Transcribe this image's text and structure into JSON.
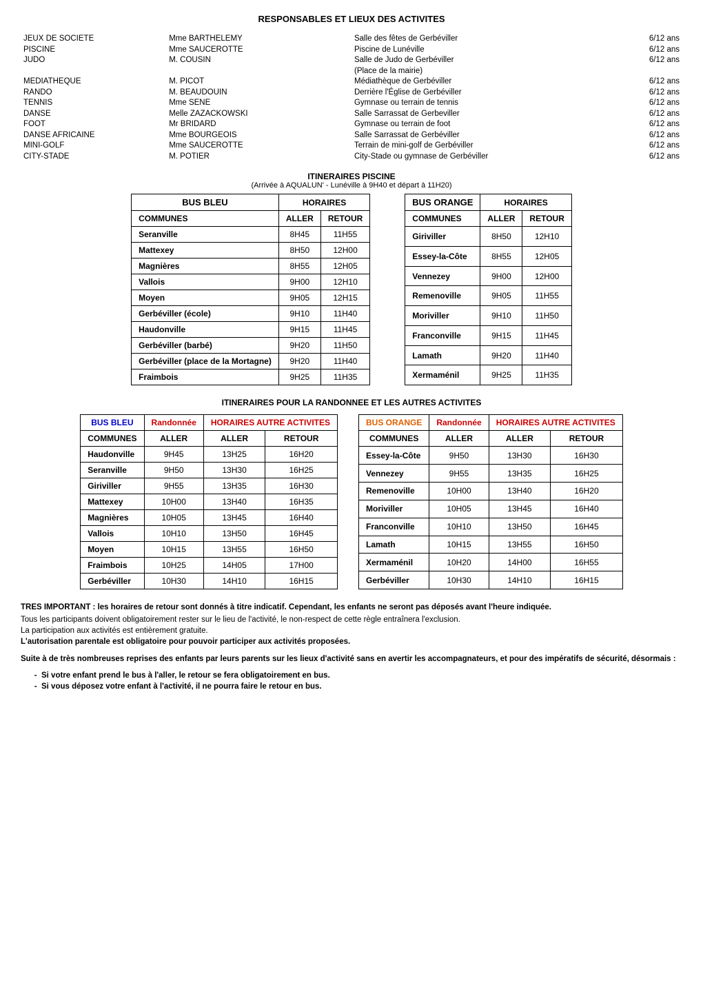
{
  "title": "RESPONSABLES ET LIEUX DES ACTIVITES",
  "responsables": {
    "group1": [
      {
        "act": "JEUX DE SOCIETE",
        "name": "Mme BARTHELEMY",
        "loc": "Salle des fêtes de Gerbéviller",
        "age": "6/12 ans"
      },
      {
        "act": "PISCINE",
        "name": "Mme SAUCEROTTE",
        "loc": "Piscine de Lunéville",
        "age": "6/12 ans"
      },
      {
        "act": "JUDO",
        "name": "M. COUSIN",
        "loc": "Salle de Judo de Gerbéviller",
        "age": "6/12 ans"
      },
      {
        "act": "",
        "name": "",
        "loc": "   (Place de la mairie)",
        "age": ""
      }
    ],
    "group2": [
      {
        "act": "MEDIATHEQUE",
        "name": "M. PICOT",
        "loc": "Médiathèque de Gerbéviller",
        "age": "6/12 ans"
      },
      {
        "act": "RANDO",
        "name": "M. BEAUDOUIN",
        "loc": "Derrière l'Église de Gerbéviller",
        "age": "6/12 ans"
      },
      {
        "act": "TENNIS",
        "name": "Mme SENE",
        "loc": "Gymnase ou terrain de tennis",
        "age": "6/12 ans"
      },
      {
        "act": "DANSE",
        "name": "Melle ZAZACKOWSKI",
        "loc": "Salle Sarrassat de Gerbeviller",
        "age": "6/12 ans"
      },
      {
        "act": "FOOT",
        "name": "Mr BRIDARD",
        "loc": "Gymnase ou terrain de foot",
        "age": "6/12 ans"
      },
      {
        "act": "DANSE AFRICAINE",
        "name": "Mme BOURGEOIS",
        "loc": "Salle Sarrassat de Gerbéviller",
        "age": "6/12 ans"
      },
      {
        "act": "MINI-GOLF",
        "name": "Mme SAUCEROTTE",
        "loc": "Terrain de mini-golf de Gerbéviller",
        "age": "6/12 ans"
      },
      {
        "act": "CITY-STADE",
        "name": "M. POTIER",
        "loc": "City-Stade ou gymnase de Gerbéviller",
        "age": "6/12 ans"
      }
    ]
  },
  "piscine": {
    "title": "ITINERAIRES PISCINE",
    "sub": "(Arrivée à AQUALUN' - Lunéville à 9H40 et départ à 11H20)",
    "left": {
      "bus": "BUS BLEU",
      "hor": "HORAIRES",
      "com": "COMMUNES",
      "aller": "ALLER",
      "retour": "RETOUR",
      "rows": [
        {
          "c": "Seranville",
          "a": "8H45",
          "r": "11H55"
        },
        {
          "c": "Mattexey",
          "a": "8H50",
          "r": "12H00"
        },
        {
          "c": "Magnières",
          "a": "8H55",
          "r": "12H05"
        },
        {
          "c": "Vallois",
          "a": "9H00",
          "r": "12H10"
        },
        {
          "c": "Moyen",
          "a": "9H05",
          "r": "12H15"
        },
        {
          "c": "Gerbéviller (école)",
          "a": "9H10",
          "r": "11H40"
        },
        {
          "c": "Haudonville",
          "a": "9H15",
          "r": "11H45"
        },
        {
          "c": "Gerbéviller (barbé)",
          "a": "9H20",
          "r": "11H50"
        },
        {
          "c": "Gerbéviller (place de la Mortagne)",
          "a": "9H20",
          "r": "11H40"
        },
        {
          "c": "Fraimbois",
          "a": "9H25",
          "r": "11H35"
        }
      ]
    },
    "right": {
      "bus": "BUS ORANGE",
      "hor": "HORAIRES",
      "com": "COMMUNES",
      "aller": "ALLER",
      "retour": "RETOUR",
      "rows": [
        {
          "c": "Giriviller",
          "a": "8H50",
          "r": "12H10"
        },
        {
          "c": "Essey-la-Côte",
          "a": "8H55",
          "r": "12H05"
        },
        {
          "c": "Vennezey",
          "a": "9H00",
          "r": "12H00"
        },
        {
          "c": "Remenoville",
          "a": "9H05",
          "r": "11H55"
        },
        {
          "c": "Moriviller",
          "a": "9H10",
          "r": "11H50"
        },
        {
          "c": "Franconville",
          "a": "9H15",
          "r": "11H45"
        },
        {
          "c": "Lamath",
          "a": "9H20",
          "r": "11H40"
        },
        {
          "c": "Xermaménil",
          "a": "9H25",
          "r": "11H35"
        }
      ]
    }
  },
  "rando": {
    "title": "ITINERAIRES POUR LA RANDONNEE ET LES AUTRES ACTIVITES",
    "left": {
      "bus": "BUS BLEU",
      "rand": "Randonnée",
      "hor": "HORAIRES AUTRE ACTIVITES",
      "com": "COMMUNES",
      "aller": "ALLER",
      "aller2": "ALLER",
      "retour": "RETOUR",
      "rows": [
        {
          "c": "Haudonville",
          "a1": "9H45",
          "a2": "13H25",
          "r": "16H20"
        },
        {
          "c": "Seranville",
          "a1": "9H50",
          "a2": "13H30",
          "r": "16H25"
        },
        {
          "c": "Giriviller",
          "a1": "9H55",
          "a2": "13H35",
          "r": "16H30"
        },
        {
          "c": "Mattexey",
          "a1": "10H00",
          "a2": "13H40",
          "r": "16H35"
        },
        {
          "c": "Magnières",
          "a1": "10H05",
          "a2": "13H45",
          "r": "16H40"
        },
        {
          "c": "Vallois",
          "a1": "10H10",
          "a2": "13H50",
          "r": "16H45"
        },
        {
          "c": "Moyen",
          "a1": "10H15",
          "a2": "13H55",
          "r": "16H50"
        },
        {
          "c": "Fraimbois",
          "a1": "10H25",
          "a2": "14H05",
          "r": "17H00"
        },
        {
          "c": "Gerbéviller",
          "a1": "10H30",
          "a2": "14H10",
          "r": "16H15"
        }
      ]
    },
    "right": {
      "bus": "BUS ORANGE",
      "rand": "Randonnée",
      "hor": "HORAIRES AUTRE ACTIVITES",
      "com": "COMMUNES",
      "aller": "ALLER",
      "aller2": "ALLER",
      "retour": "RETOUR",
      "rows": [
        {
          "c": "Essey-la-Côte",
          "a1": "9H50",
          "a2": "13H30",
          "r": "16H30"
        },
        {
          "c": "Vennezey",
          "a1": "9H55",
          "a2": "13H35",
          "r": "16H25"
        },
        {
          "c": "Remenoville",
          "a1": "10H00",
          "a2": "13H40",
          "r": "16H20"
        },
        {
          "c": "Moriviller",
          "a1": "10H05",
          "a2": "13H45",
          "r": "16H40"
        },
        {
          "c": "Franconville",
          "a1": "10H10",
          "a2": "13H50",
          "r": "16H45"
        },
        {
          "c": "Lamath",
          "a1": "10H15",
          "a2": "13H55",
          "r": "16H50"
        },
        {
          "c": "Xermaménil",
          "a1": "10H20",
          "a2": "14H00",
          "r": "16H55"
        },
        {
          "c": "Gerbéviller",
          "a1": "10H30",
          "a2": "14H10",
          "r": "16H15"
        }
      ]
    }
  },
  "notes": {
    "p1a": "TRES IMPORTANT : les horaires de retour sont donnés à titre indicatif. Cependant, les enfants ne seront pas déposés avant l'heure indiquée.",
    "p1b": "Tous les participants doivent obligatoirement rester sur le lieu de l'activité, le non-respect de cette règle entraînera l'exclusion.",
    "p1c": "La participation aux activités est entièrement gratuite.",
    "p1d": "L'autorisation parentale est obligatoire pour pouvoir participer aux activités proposées.",
    "p2": "Suite à de très nombreuses reprises des enfants par leurs parents sur les lieux d'activité sans en avertir les accompagnateurs, et pour des impératifs de sécurité, désormais :",
    "b1": "Si votre enfant prend le bus à l'aller, le retour se fera obligatoirement en bus.",
    "b2": "Si vous déposez votre enfant à l'activité, il ne pourra faire le retour en bus."
  }
}
